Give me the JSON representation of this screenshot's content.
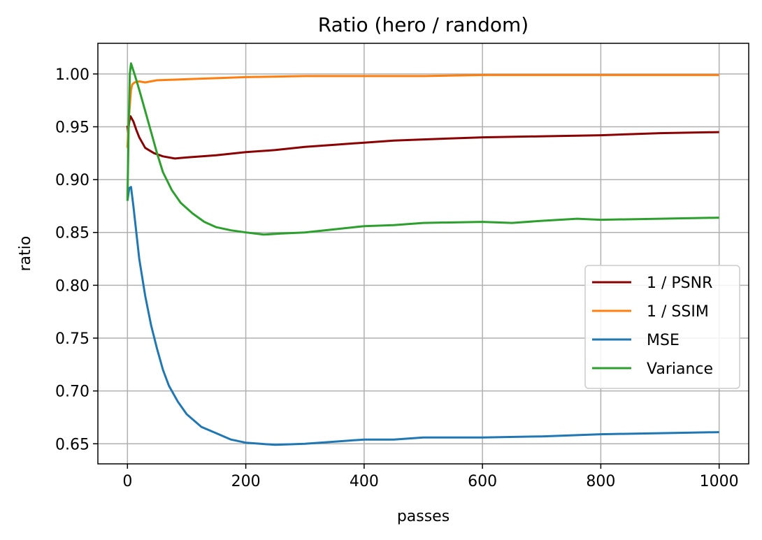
{
  "chart_data": {
    "type": "line",
    "title": "Ratio (hero / random)",
    "xlabel": "passes",
    "ylabel": "ratio",
    "xlim": [
      -50,
      1050
    ],
    "ylim": [
      0.631,
      1.029
    ],
    "xticks": [
      0,
      200,
      400,
      600,
      800,
      1000
    ],
    "xtick_labels": [
      "0",
      "200",
      "400",
      "600",
      "800",
      "1000"
    ],
    "yticks": [
      0.65,
      0.7,
      0.75,
      0.8,
      0.85,
      0.9,
      0.95,
      1.0
    ],
    "ytick_labels": [
      "0.65",
      "0.70",
      "0.75",
      "0.80",
      "0.85",
      "0.90",
      "0.95",
      "1.00"
    ],
    "grid": true,
    "legend_position": "center-right",
    "series": [
      {
        "name": "1 / PSNR",
        "color": "#8b0000",
        "points": [
          [
            0,
            0.951
          ],
          [
            1,
            0.945
          ],
          [
            3,
            0.955
          ],
          [
            5,
            0.96
          ],
          [
            10,
            0.955
          ],
          [
            15,
            0.947
          ],
          [
            20,
            0.94
          ],
          [
            30,
            0.93
          ],
          [
            45,
            0.925
          ],
          [
            60,
            0.922
          ],
          [
            80,
            0.92
          ],
          [
            100,
            0.921
          ],
          [
            150,
            0.923
          ],
          [
            200,
            0.926
          ],
          [
            250,
            0.928
          ],
          [
            300,
            0.931
          ],
          [
            350,
            0.933
          ],
          [
            400,
            0.935
          ],
          [
            450,
            0.937
          ],
          [
            500,
            0.938
          ],
          [
            600,
            0.94
          ],
          [
            700,
            0.941
          ],
          [
            800,
            0.942
          ],
          [
            900,
            0.944
          ],
          [
            1000,
            0.945
          ]
        ]
      },
      {
        "name": "1 / SSIM",
        "color": "#ff7f0e",
        "points": [
          [
            0,
            0.93
          ],
          [
            2,
            0.955
          ],
          [
            4,
            0.97
          ],
          [
            6,
            0.985
          ],
          [
            8,
            0.99
          ],
          [
            12,
            0.992
          ],
          [
            20,
            0.993
          ],
          [
            30,
            0.992
          ],
          [
            50,
            0.994
          ],
          [
            100,
            0.995
          ],
          [
            200,
            0.997
          ],
          [
            300,
            0.998
          ],
          [
            400,
            0.998
          ],
          [
            500,
            0.998
          ],
          [
            600,
            0.999
          ],
          [
            800,
            0.999
          ],
          [
            1000,
            0.999
          ]
        ]
      },
      {
        "name": "MSE",
        "color": "#1f77b4",
        "points": [
          [
            0,
            0.88
          ],
          [
            3,
            0.892
          ],
          [
            6,
            0.893
          ],
          [
            10,
            0.875
          ],
          [
            15,
            0.85
          ],
          [
            20,
            0.825
          ],
          [
            30,
            0.79
          ],
          [
            40,
            0.762
          ],
          [
            50,
            0.74
          ],
          [
            60,
            0.72
          ],
          [
            70,
            0.705
          ],
          [
            85,
            0.69
          ],
          [
            100,
            0.678
          ],
          [
            125,
            0.666
          ],
          [
            150,
            0.66
          ],
          [
            175,
            0.654
          ],
          [
            200,
            0.651
          ],
          [
            225,
            0.65
          ],
          [
            250,
            0.649
          ],
          [
            300,
            0.65
          ],
          [
            350,
            0.652
          ],
          [
            400,
            0.654
          ],
          [
            450,
            0.654
          ],
          [
            500,
            0.656
          ],
          [
            600,
            0.656
          ],
          [
            700,
            0.657
          ],
          [
            800,
            0.659
          ],
          [
            900,
            0.66
          ],
          [
            1000,
            0.661
          ]
        ]
      },
      {
        "name": "Variance",
        "color": "#2ca02c",
        "points": [
          [
            0,
            0.88
          ],
          [
            2,
            0.95
          ],
          [
            4,
            1.0
          ],
          [
            6,
            1.01
          ],
          [
            9,
            1.005
          ],
          [
            13,
            0.998
          ],
          [
            20,
            0.985
          ],
          [
            30,
            0.965
          ],
          [
            40,
            0.945
          ],
          [
            50,
            0.925
          ],
          [
            60,
            0.907
          ],
          [
            75,
            0.89
          ],
          [
            90,
            0.878
          ],
          [
            110,
            0.868
          ],
          [
            130,
            0.86
          ],
          [
            150,
            0.855
          ],
          [
            175,
            0.852
          ],
          [
            200,
            0.85
          ],
          [
            230,
            0.848
          ],
          [
            260,
            0.849
          ],
          [
            300,
            0.85
          ],
          [
            350,
            0.853
          ],
          [
            400,
            0.856
          ],
          [
            450,
            0.857
          ],
          [
            500,
            0.859
          ],
          [
            600,
            0.86
          ],
          [
            650,
            0.859
          ],
          [
            700,
            0.861
          ],
          [
            760,
            0.863
          ],
          [
            800,
            0.862
          ],
          [
            900,
            0.863
          ],
          [
            1000,
            0.864
          ]
        ]
      }
    ]
  }
}
